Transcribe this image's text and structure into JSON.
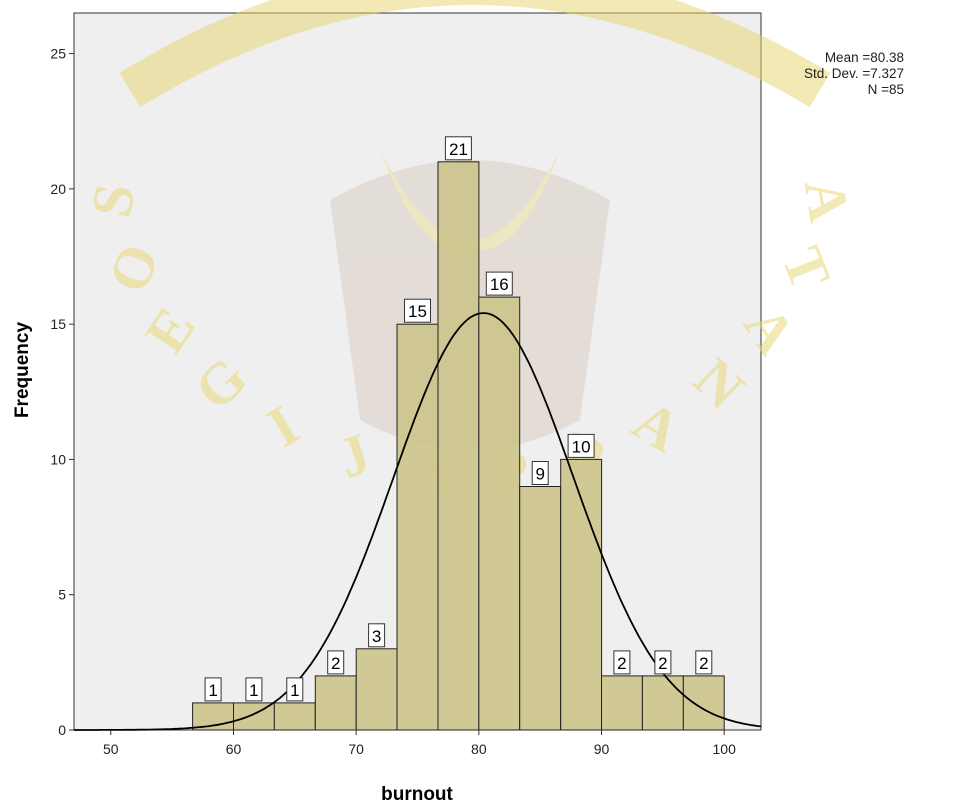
{
  "chart_data": {
    "type": "bar",
    "subtype": "histogram",
    "xlabel": "burnout",
    "ylabel": "Frequency",
    "xlim": [
      47,
      103
    ],
    "ylim": [
      0,
      26.5
    ],
    "x_ticks": [
      50,
      60,
      70,
      80,
      90,
      100
    ],
    "y_ticks": [
      0,
      5,
      10,
      15,
      20,
      25
    ],
    "grid": false,
    "bin_width": 3.33,
    "bins": [
      {
        "start": 56.67,
        "end": 60.0,
        "count": 1
      },
      {
        "start": 60.0,
        "end": 63.33,
        "count": 1
      },
      {
        "start": 63.33,
        "end": 66.67,
        "count": 1
      },
      {
        "start": 66.67,
        "end": 70.0,
        "count": 2
      },
      {
        "start": 70.0,
        "end": 73.33,
        "count": 3
      },
      {
        "start": 73.33,
        "end": 76.67,
        "count": 15
      },
      {
        "start": 76.67,
        "end": 80.0,
        "count": 21
      },
      {
        "start": 80.0,
        "end": 83.33,
        "count": 16
      },
      {
        "start": 83.33,
        "end": 86.67,
        "count": 9
      },
      {
        "start": 86.67,
        "end": 90.0,
        "count": 10
      },
      {
        "start": 90.0,
        "end": 93.33,
        "count": 2
      },
      {
        "start": 93.33,
        "end": 96.67,
        "count": 2
      },
      {
        "start": 96.67,
        "end": 100.0,
        "count": 2
      }
    ],
    "normal_curve": {
      "mean": 80.38,
      "std_dev": 7.327,
      "n": 85
    },
    "stats_text": [
      "Mean =80.38",
      "Std. Dev. =7.327",
      "N =85"
    ],
    "legend_position": "top-right",
    "colors": {
      "bar_fill": "#ccc48a",
      "bar_stroke": "#222222",
      "plot_background": "#efefef",
      "curve": "#000000"
    }
  },
  "watermark": {
    "text": "SOEGIJAPRANATA"
  }
}
